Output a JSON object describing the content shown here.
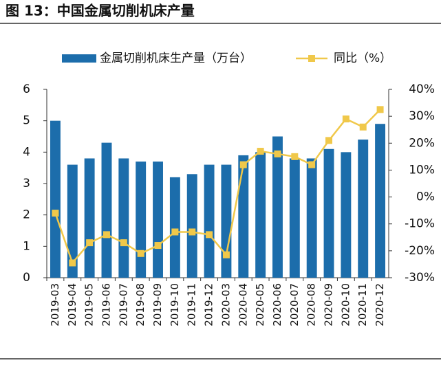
{
  "chart_data": {
    "type": "bar_line",
    "title": "图 13：中国金属切削机床产量",
    "categories": [
      "2019-03",
      "2019-04",
      "2019-05",
      "2019-06",
      "2019-07",
      "2019-08",
      "2019-09",
      "2019-10",
      "2019-11",
      "2019-12",
      "2020-03",
      "2020-04",
      "2020-05",
      "2020-06",
      "2020-07",
      "2020-08",
      "2020-09",
      "2020-10",
      "2020-11",
      "2020-12"
    ],
    "series": [
      {
        "name": "金属切削机床生产量（万台）",
        "color": "#1c6dab",
        "type": "bar",
        "values": [
          5.0,
          3.6,
          3.8,
          4.3,
          3.8,
          3.7,
          3.7,
          3.2,
          3.3,
          3.6,
          3.6,
          3.9,
          4.0,
          4.5,
          3.8,
          3.8,
          4.1,
          4.0,
          4.4,
          4.9
        ]
      },
      {
        "name": "同比（%）",
        "color": "#f0c84a",
        "type": "line",
        "axis": "y2",
        "values": [
          -6,
          -24.5,
          -17,
          -14,
          -17,
          -21,
          -18,
          -13,
          -13,
          -14,
          -21.5,
          12,
          17,
          16,
          15,
          12,
          21,
          29,
          26,
          32.5
        ]
      }
    ],
    "ylim": [
      0,
      6
    ],
    "yticks": [
      0,
      1,
      2,
      3,
      4,
      5,
      6
    ],
    "y2lim": [
      -30,
      40
    ],
    "y2ticks": [
      {
        "value": -30,
        "label": "-30%"
      },
      {
        "value": -20,
        "label": "-20%"
      },
      {
        "value": -10,
        "label": "-10%"
      },
      {
        "value": 0,
        "label": "0%"
      },
      {
        "value": 10,
        "label": "10%"
      },
      {
        "value": 20,
        "label": "20%"
      },
      {
        "value": 30,
        "label": "30%"
      },
      {
        "value": 40,
        "label": "40%"
      }
    ]
  }
}
